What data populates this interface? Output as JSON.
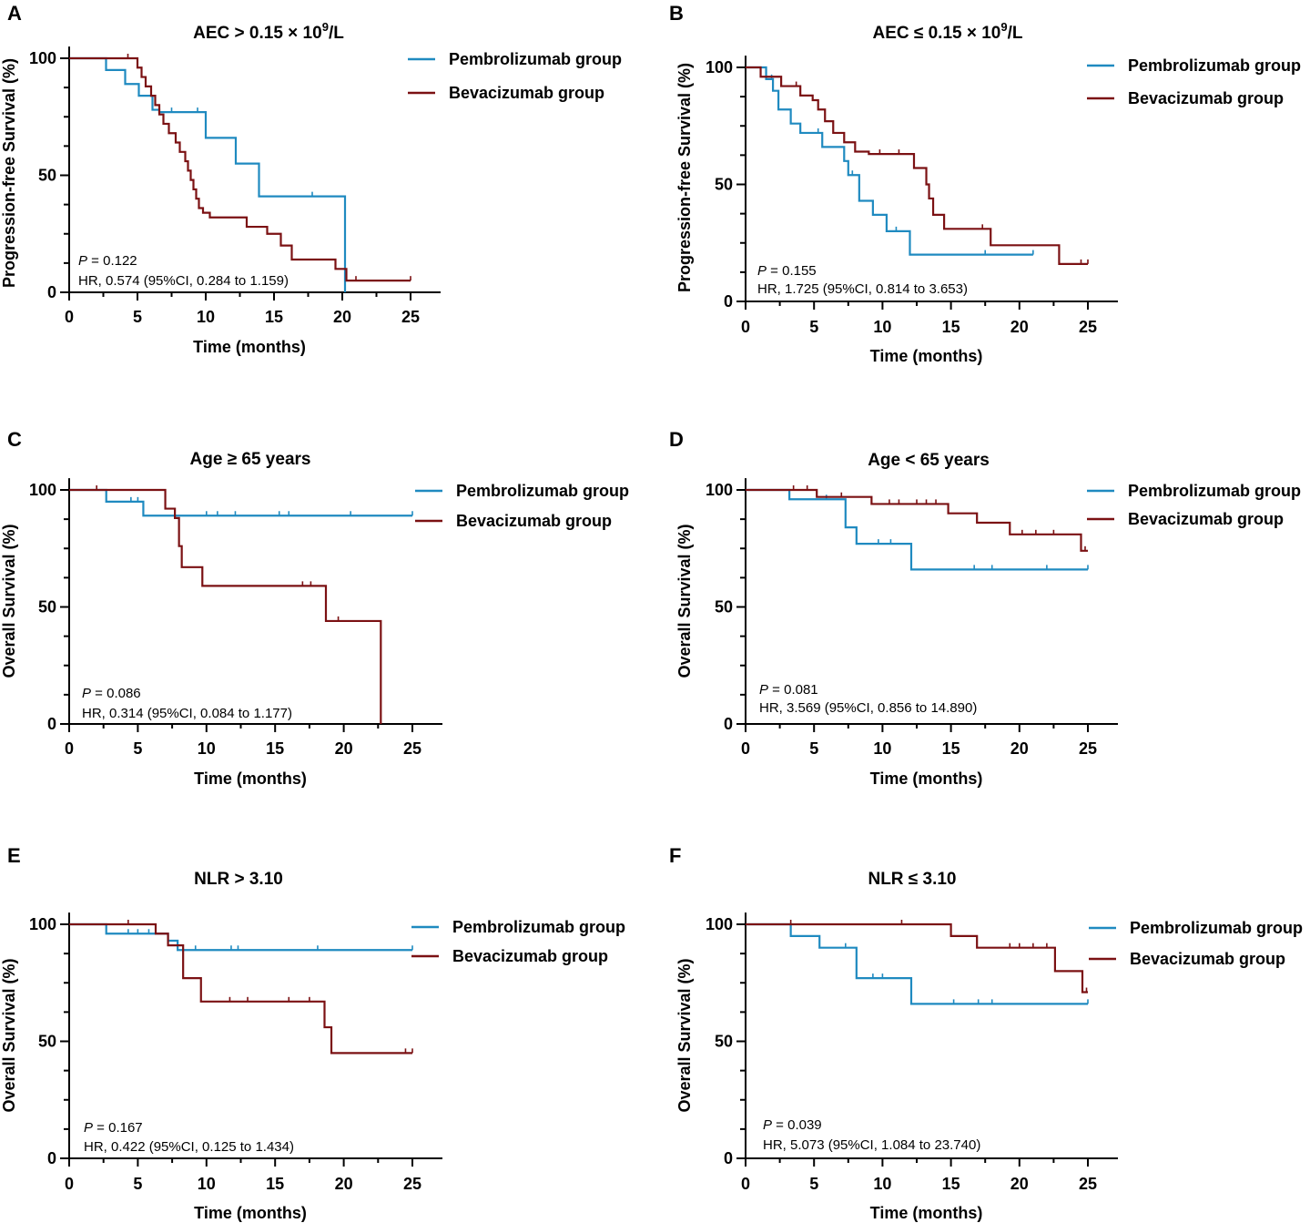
{
  "figure": {
    "colors": {
      "pembrolizumab": "#1f8ac0",
      "bevacizumab": "#7b1113",
      "axis": "#000000"
    }
  },
  "chart_data": [
    {
      "panel": "A",
      "type": "line",
      "subtype": "kaplan-meier",
      "title": "AEC > 0.15 × 10⁹/L",
      "title_main": "AEC > 0.15 × 10",
      "title_sup": "9",
      "title_tail": "/L",
      "xlabel": "Time (months)",
      "ylabel": "Progression-free Survival (%)",
      "xlim": [
        0,
        27
      ],
      "ylim": [
        0,
        105
      ],
      "xticks": [
        0,
        5,
        10,
        15,
        20,
        25
      ],
      "yticks": [
        0,
        50,
        100
      ],
      "legend": [
        "Pembrolizumab group",
        "Bevacizumab group"
      ],
      "stats": {
        "p_label": "P",
        "p_value": " = 0.122",
        "hr": "HR, 0.574 (95%CI, 0.284 to 1.159)"
      },
      "series": [
        {
          "name": "Pembrolizumab group",
          "x": [
            0,
            2.7,
            4.1,
            5.1,
            6.1,
            6.6,
            10,
            12.2,
            13.9,
            20.2
          ],
          "y": [
            100,
            95,
            89,
            84,
            78,
            77,
            66,
            55,
            41,
            0
          ],
          "end": 20.2,
          "censor": [
            2.7,
            7.5,
            9.4,
            17.8
          ]
        },
        {
          "name": "Bevacizumab group",
          "x": [
            0,
            5.0,
            5.3,
            5.6,
            6.0,
            6.3,
            6.6,
            6.9,
            7.3,
            7.8,
            8.1,
            8.5,
            8.7,
            8.9,
            9.1,
            9.3,
            9.5,
            9.8,
            10.3,
            13.0,
            14.5,
            15.5,
            16.3,
            19.5,
            20.3
          ],
          "y": [
            100,
            96,
            92,
            88,
            84,
            80,
            76,
            72,
            68,
            64,
            60,
            56,
            52,
            48,
            44,
            40,
            36,
            34,
            32,
            28,
            25,
            20,
            14,
            10,
            5
          ],
          "end": 25,
          "censor": [
            4.3,
            21.0,
            25.0
          ]
        }
      ]
    },
    {
      "panel": "B",
      "type": "line",
      "subtype": "kaplan-meier",
      "title": "AEC ≤ 0.15 × 10⁹/L",
      "title_main": "AEC ≤ 0.15 × 10",
      "title_sup": "9",
      "title_tail": "/L",
      "xlabel": "Time (months)",
      "ylabel": "Progression-free Survival (%)",
      "xlim": [
        0,
        27
      ],
      "ylim": [
        0,
        105
      ],
      "xticks": [
        0,
        5,
        10,
        15,
        20,
        25
      ],
      "yticks": [
        0,
        50,
        100
      ],
      "legend": [
        "Pembrolizumab group",
        "Bevacizumab group"
      ],
      "stats": {
        "p_label": "P",
        "p_value": " = 0.155",
        "hr": "HR, 1.725 (95%CI, 0.814 to 3.653)"
      },
      "series": [
        {
          "name": "Pembrolizumab group",
          "x": [
            0,
            1.5,
            2.0,
            2.4,
            3.3,
            4.0,
            5.6,
            7.2,
            7.5,
            8.3,
            9.3,
            10.3,
            12.0
          ],
          "y": [
            100,
            95,
            90,
            82,
            76,
            72,
            66,
            60,
            54,
            43,
            37,
            30,
            20
          ],
          "end": 21,
          "censor": [
            1.9,
            5.3,
            7.8,
            11.0,
            17.5,
            21.0
          ]
        },
        {
          "name": "Bevacizumab group",
          "x": [
            0,
            1.1,
            2.6,
            4.0,
            4.9,
            5.3,
            5.8,
            6.4,
            7.2,
            8.0,
            9.0,
            12.3,
            13.2,
            13.4,
            13.7,
            14.5,
            17.9,
            22.9
          ],
          "y": [
            100,
            96,
            92,
            88,
            86,
            82,
            77,
            72,
            68,
            64,
            63,
            57,
            50,
            44,
            37,
            31,
            24,
            16
          ],
          "end": 25,
          "censor": [
            3.7,
            9.8,
            11.2,
            17.3,
            24.5,
            25.0
          ]
        }
      ]
    },
    {
      "panel": "C",
      "type": "line",
      "subtype": "kaplan-meier",
      "title": "Age ≥ 65 years",
      "title_main": "Age ≥ 65 years",
      "title_sup": "",
      "title_tail": "",
      "xlabel": "Time (months)",
      "ylabel": "Overall Survival (%)",
      "xlim": [
        0,
        27
      ],
      "ylim": [
        0,
        105
      ],
      "xticks": [
        0,
        5,
        10,
        15,
        20,
        25
      ],
      "yticks": [
        0,
        50,
        100
      ],
      "legend": [
        "Pembrolizumab group",
        "Bevacizumab group"
      ],
      "stats": {
        "p_label": "P",
        "p_value": " = 0.086",
        "hr": "HR, 0.314 (95%CI, 0.084 to 1.177)"
      },
      "series": [
        {
          "name": "Pembrolizumab group",
          "x": [
            0,
            2.7,
            5.4
          ],
          "y": [
            100,
            95,
            89
          ],
          "end": 25,
          "censor": [
            4.5,
            5.0,
            10.0,
            10.8,
            12.1,
            15.3,
            16.0,
            20.5,
            25.0
          ]
        },
        {
          "name": "Bevacizumab group",
          "x": [
            0,
            7.0,
            7.7,
            8.0,
            8.2,
            9.7,
            18.7,
            22.7
          ],
          "y": [
            100,
            92,
            88,
            76,
            67,
            59,
            44,
            0
          ],
          "end": 22.7,
          "censor": [
            2.0,
            17.0,
            17.6,
            19.6
          ]
        }
      ]
    },
    {
      "panel": "D",
      "type": "line",
      "subtype": "kaplan-meier",
      "title": "Age < 65 years",
      "title_main": "Age < 65 years",
      "title_sup": "",
      "title_tail": "",
      "xlabel": "Time (months)",
      "ylabel": "Overall Survival (%)",
      "xlim": [
        0,
        27
      ],
      "ylim": [
        0,
        105
      ],
      "xticks": [
        0,
        5,
        10,
        15,
        20,
        25
      ],
      "yticks": [
        0,
        50,
        100
      ],
      "legend": [
        "Pembrolizumab group",
        "Bevacizumab group"
      ],
      "stats": {
        "p_label": "P",
        "p_value": " = 0.081",
        "hr": "HR, 3.569 (95%CI, 0.856 to 14.890)"
      },
      "series": [
        {
          "name": "Pembrolizumab group",
          "x": [
            0,
            3.2,
            7.3,
            8.1,
            12.1
          ],
          "y": [
            100,
            96,
            84,
            77,
            66
          ],
          "end": 25,
          "censor": [
            5.9,
            9.7,
            10.6,
            16.7,
            18.0,
            22.0,
            25.0
          ]
        },
        {
          "name": "Bevacizumab group",
          "x": [
            0,
            5.2,
            9.2,
            14.8,
            16.9,
            19.3,
            24.5
          ],
          "y": [
            100,
            97,
            94,
            90,
            86,
            81,
            74
          ],
          "end": 25,
          "censor": [
            3.5,
            4.5,
            7.0,
            10.5,
            11.2,
            12.5,
            13.2,
            13.9,
            20.2,
            21.2,
            22.5,
            24.8
          ]
        }
      ]
    },
    {
      "panel": "E",
      "type": "line",
      "subtype": "kaplan-meier",
      "title": "NLR > 3.10",
      "title_main": "NLR > 3.10",
      "title_sup": "",
      "title_tail": "",
      "xlabel": "Time (months)",
      "ylabel": "Overall Survival (%)",
      "xlim": [
        0,
        27
      ],
      "ylim": [
        0,
        105
      ],
      "xticks": [
        0,
        5,
        10,
        15,
        20,
        25
      ],
      "yticks": [
        0,
        50,
        100
      ],
      "legend": [
        "Pembrolizumab group",
        "Bevacizumab group"
      ],
      "stats": {
        "p_label": "P",
        "p_value": " = 0.167",
        "hr": "HR, 0.422 (95%CI, 0.125 to 1.434)"
      },
      "series": [
        {
          "name": "Pembrolizumab group",
          "x": [
            0,
            2.7,
            7.2,
            7.9
          ],
          "y": [
            100,
            96,
            93,
            89
          ],
          "end": 25,
          "censor": [
            4.3,
            5.0,
            5.8,
            9.2,
            11.8,
            12.3,
            18.1,
            25.0
          ]
        },
        {
          "name": "Bevacizumab group",
          "x": [
            0,
            6.3,
            7.2,
            8.3,
            9.6,
            18.6,
            19.1
          ],
          "y": [
            100,
            96,
            91,
            77,
            67,
            56,
            45
          ],
          "end": 25,
          "censor": [
            4.3,
            11.7,
            13.0,
            16.0,
            17.5,
            24.5,
            25.0
          ]
        }
      ]
    },
    {
      "panel": "F",
      "type": "line",
      "subtype": "kaplan-meier",
      "title": "NLR ≤ 3.10",
      "title_main": "NLR ≤ 3.10",
      "title_sup": "",
      "title_tail": "",
      "xlabel": "Time (months)",
      "ylabel": "Overall Survival (%)",
      "xlim": [
        0,
        27
      ],
      "ylim": [
        0,
        105
      ],
      "xticks": [
        0,
        5,
        10,
        15,
        20,
        25
      ],
      "yticks": [
        0,
        50,
        100
      ],
      "legend": [
        "Pembrolizumab group",
        "Bevacizumab group"
      ],
      "stats": {
        "p_label": "P",
        "p_value": " = 0.039",
        "hr": "HR, 5.073 (95%CI, 1.084 to 23.740)"
      },
      "series": [
        {
          "name": "Pembrolizumab group",
          "x": [
            0,
            3.3,
            5.4,
            8.1,
            12.1
          ],
          "y": [
            100,
            95,
            90,
            77,
            66
          ],
          "end": 25,
          "censor": [
            7.3,
            9.3,
            10.0,
            15.2,
            17.0,
            18.0,
            25.0
          ]
        },
        {
          "name": "Bevacizumab group",
          "x": [
            0,
            15.0,
            16.9,
            22.6,
            24.6
          ],
          "y": [
            100,
            95,
            90,
            80,
            71
          ],
          "end": 25,
          "censor": [
            3.3,
            11.4,
            19.3,
            20.0,
            21.0,
            22.0,
            24.9
          ]
        }
      ]
    }
  ]
}
